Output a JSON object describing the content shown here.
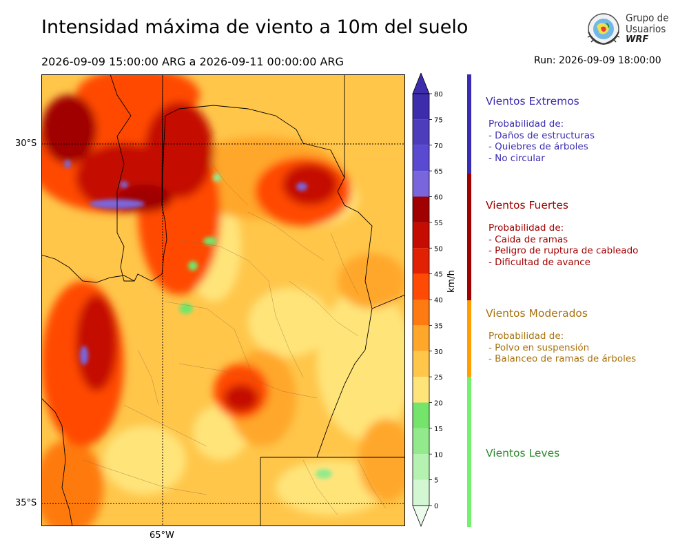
{
  "header": {
    "title": "Intensidad máxima de viento a 10m del suelo",
    "period": "2026-09-09 15:00:00 ARG  a  2026-09-11 00:00:00 ARG",
    "run": "Run: 2026-09-09 18:00:00"
  },
  "logo": {
    "line1": "Grupo de",
    "line2": "Usuarios",
    "line3": "WRF"
  },
  "map": {
    "lat_labels": [
      "30°S",
      "35°S"
    ],
    "lon_labels": [
      "65°W"
    ]
  },
  "colorbar": {
    "unit": "km/h",
    "ticks": [
      "0",
      "5",
      "10",
      "15",
      "20",
      "25",
      "30",
      "35",
      "40",
      "45",
      "50",
      "55",
      "60",
      "65",
      "70",
      "75",
      "80"
    ],
    "colors": [
      "#ecfcec",
      "#d2f7d2",
      "#b5f2b2",
      "#93ea8c",
      "#74e46a",
      "#ffe47a",
      "#ffc64a",
      "#ffa72a",
      "#ff7a10",
      "#ff4a06",
      "#e22004",
      "#c40c02",
      "#a00000",
      "#7a66dc",
      "#5a4ad2",
      "#4d3cbc",
      "#3d2cac"
    ]
  },
  "categories": [
    {
      "name": "Vientos Extremos",
      "color": "#3a2cb0",
      "desc": [
        "Probabilidad de:",
        "- Daños de estructuras",
        "- Quiebres de árboles",
        "- No circular"
      ]
    },
    {
      "name": "Vientos Fuertes",
      "color": "#a00000",
      "desc": [
        "Probabilidad de:",
        "- Caida de ramas",
        "- Peligro de ruptura de cableado",
        "- Dificultad de avance"
      ]
    },
    {
      "name": "Vientos Moderados",
      "color": "#a8720e",
      "desc": [
        "Probabilidad de:",
        "- Polvo en suspensión",
        "- Balanceo de ramas de árboles"
      ]
    },
    {
      "name": "Vientos Leves",
      "color": "#2e8b2e",
      "desc": []
    }
  ],
  "category_bar_colors": [
    "#3a2cb0",
    "#a00000",
    "#ffa000",
    "#74f06e"
  ]
}
